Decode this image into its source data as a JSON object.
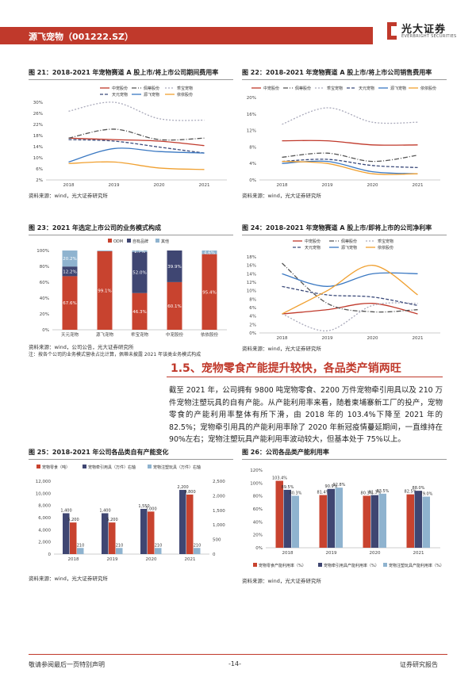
{
  "header": {
    "title": "源飞宠物（001222.SZ）",
    "logo_cn": "光大证券",
    "logo_en": "EVERBRIGHT SECURITIES"
  },
  "fig21": {
    "title": "图 21：2018-2021 年宠物赛道 A 股上市/将上市公司期间费用率",
    "source": "资料来源：wind，光大证券研究所",
    "chart_data": {
      "type": "line",
      "x": [
        "2018",
        "2019",
        "2020",
        "2021"
      ],
      "ylim": [
        0.02,
        0.28
      ],
      "yticks": [
        "2%",
        "6%",
        "10%",
        "14%",
        "18%",
        "22%",
        "26%",
        "30%"
      ],
      "series": [
        {
          "name": "中宠股份",
          "values": [
            0.16,
            0.155,
            0.15,
            0.135
          ],
          "color": "#c0392b",
          "dash": ""
        },
        {
          "name": "佩蒂股份",
          "values": [
            0.16,
            0.19,
            0.155,
            0.16
          ],
          "color": "#555",
          "dash": "6 2 1 2"
        },
        {
          "name": "乖宝宠物",
          "values": [
            0.25,
            0.28,
            0.225,
            0.22
          ],
          "color": "#aab",
          "dash": "2 2"
        },
        {
          "name": "天元宠物",
          "values": [
            0.155,
            0.15,
            0.13,
            0.11
          ],
          "color": "#3b4a7a",
          "dash": "4 2"
        },
        {
          "name": "源飞宠物",
          "values": [
            0.08,
            0.125,
            0.115,
            0.11
          ],
          "color": "#3a78c2",
          "dash": ""
        },
        {
          "name": "依依股份",
          "values": [
            0.075,
            0.08,
            0.06,
            0.055
          ],
          "color": "#f0a030",
          "dash": ""
        }
      ]
    }
  },
  "fig22": {
    "title": "图 22：2018-2021 年宠物赛道 A 股上市/将上市公司销售费用率",
    "source": "资料来源：wind，光大证券研究所",
    "chart_data": {
      "type": "line",
      "x": [
        "2018",
        "2019",
        "2020",
        "2021"
      ],
      "ylim": [
        0,
        0.2
      ],
      "yticks": [
        "0%",
        "4%",
        "8%",
        "12%",
        "16%",
        "20%"
      ],
      "series": [
        {
          "name": "中宠股份",
          "values": [
            0.095,
            0.095,
            0.085,
            0.085
          ],
          "color": "#c0392b",
          "dash": ""
        },
        {
          "name": "佩蒂股份",
          "values": [
            0.055,
            0.065,
            0.045,
            0.06
          ],
          "color": "#555",
          "dash": "6 2 1 2"
        },
        {
          "name": "乖宝宠物",
          "values": [
            0.135,
            0.175,
            0.14,
            0.14
          ],
          "color": "#aab",
          "dash": "2 2"
        },
        {
          "name": "天元宠物",
          "values": [
            0.045,
            0.05,
            0.035,
            0.03
          ],
          "color": "#3b4a7a",
          "dash": "4 2"
        },
        {
          "name": "源飞宠物",
          "values": [
            0.04,
            0.045,
            0.02,
            0.015
          ],
          "color": "#3a78c2",
          "dash": ""
        },
        {
          "name": "依依股份",
          "values": [
            0.045,
            0.04,
            0.015,
            0.015
          ],
          "color": "#f0a030",
          "dash": ""
        }
      ]
    }
  },
  "fig23": {
    "title": "图 23：2021 年选定上市公司的业务模式构成",
    "source": "资料来源：wind，公司公告，光大证券研究所",
    "note": "注：按各个公司的业务模式营收占比计算，佩蒂未披露 2021 年该类业务模式构成",
    "chart_data": {
      "type": "bar",
      "categories": [
        "天元宠物",
        "源飞宠物",
        "乖宝宠物",
        "中宠股份",
        "依依股份"
      ],
      "ylim": [
        0,
        1
      ],
      "yticks": [
        "0%",
        "20%",
        "40%",
        "60%",
        "80%",
        "100%"
      ],
      "series": [
        {
          "name": "ODM",
          "values": [
            0.676,
            0.991,
            0.463,
            0.601,
            0.954
          ],
          "labels": [
            "67.6%",
            "99.1%",
            "46.3%",
            "60.1%",
            "95.4%"
          ],
          "color": "#c8432f"
        },
        {
          "name": "自有品牌",
          "values": [
            0.122,
            0,
            0.52,
            0.399,
            0
          ],
          "labels": [
            "12.2%",
            "",
            "52.0%",
            "39.9%",
            ""
          ],
          "color": "#3f4672"
        },
        {
          "name": "其他",
          "values": [
            0.202,
            0.009,
            0.017,
            0,
            0.046
          ],
          "labels": [
            "20.2%",
            "",
            "1.7%",
            "",
            "4.6%"
          ],
          "color": "#8fb3cf"
        }
      ]
    }
  },
  "fig24": {
    "title": "图 24：2018-2021 年宠物赛道 A 股上市/即将上市的公司净利率",
    "source": "资料来源：wind，光大证券研究所",
    "chart_data": {
      "type": "line",
      "x": [
        "2018",
        "2019",
        "2020",
        "2021"
      ],
      "ylim": [
        0,
        0.18
      ],
      "yticks": [
        "0%",
        "2%",
        "4%",
        "6%",
        "8%",
        "10%",
        "12%",
        "14%",
        "16%",
        "18%"
      ],
      "series": [
        {
          "name": "中宠股份",
          "values": [
            0.045,
            0.055,
            0.07,
            0.045
          ],
          "color": "#c0392b",
          "dash": ""
        },
        {
          "name": "佩蒂股份",
          "values": [
            0.165,
            0.07,
            0.05,
            0.055
          ],
          "color": "#555",
          "dash": "6 2 1 2"
        },
        {
          "name": "乖宝宠物",
          "values": [
            0.045,
            0.005,
            0.065,
            0.07
          ],
          "color": "#aab",
          "dash": "2 2"
        },
        {
          "name": "天元宠物",
          "values": [
            0.11,
            0.09,
            0.085,
            0.065
          ],
          "color": "#3b4a7a",
          "dash": "4 2"
        },
        {
          "name": "源飞宠物",
          "values": [
            0.14,
            0.11,
            0.14,
            0.14
          ],
          "color": "#3a78c2",
          "dash": ""
        },
        {
          "name": "依依股份",
          "values": [
            0.045,
            0.1,
            0.16,
            0.09
          ],
          "color": "#f0a030",
          "dash": ""
        }
      ]
    }
  },
  "section": {
    "title": "1.5、宠物零食产能提升较快，各品类产销两旺",
    "paragraph": "截至 2021 年，公司拥有 9800 吨宠物零食、2200 万件宠物牵引用具以及 210 万件宠物注塑玩具的自有产能。从产能利用率来看，随着柬埔寨新工厂的投产，宠物零食的产能利用率整体有所下滑，由 2018 年的 103.4%下降至 2021 年的 82.5%；宠物牵引用具的产能利用率除了 2020 年新冠疫情蔓延期间，一直维持在 90%左右；宠物注塑玩具产能利用率波动较大，但基本处于 75%以上。"
  },
  "fig25": {
    "title": "图 25：2018-2021 年公司各品类自有产能变化",
    "source": "资料来源：wind，光大证券研究所",
    "chart_data": {
      "type": "bar",
      "categories": [
        "2018",
        "2019",
        "2020",
        "2021"
      ],
      "yleft": [
        0,
        12000
      ],
      "yleft_ticks": [
        "0",
        "2,000",
        "4,000",
        "6,000",
        "8,000",
        "10,000",
        "12,000"
      ],
      "yright": [
        0,
        2500
      ],
      "yright_ticks": [
        "0",
        "500",
        "1,000",
        "1,500",
        "2,000",
        "2,500"
      ],
      "series": [
        {
          "name": "宠物零食（吨）",
          "axis": "left",
          "values": [
            5200,
            5200,
            7000,
            9800
          ],
          "labels": [
            "5,200",
            "5,200",
            "7,000",
            "9,800"
          ],
          "color": "#c8432f"
        },
        {
          "name": "宠物牵引用具（万件）右轴",
          "axis": "right",
          "values": [
            1400,
            1400,
            1550,
            2200
          ],
          "labels": [
            "1,400",
            "1,400",
            "1,550",
            "2,200"
          ],
          "color": "#3f4672"
        },
        {
          "name": "宠物注塑玩具（万件）右轴",
          "axis": "right",
          "values": [
            210,
            210,
            210,
            210
          ],
          "labels": [
            "210",
            "210",
            "210",
            "210"
          ],
          "color": "#8fb3cf"
        }
      ]
    }
  },
  "fig26": {
    "title": "图 26：公司各品类产能利用率",
    "source": "资料来源：wind，光大证券研究所",
    "chart_data": {
      "type": "bar",
      "categories": [
        "2018",
        "2019",
        "2020",
        "2021"
      ],
      "ylim": [
        0,
        1.2
      ],
      "yticks": [
        "0%",
        "20%",
        "40%",
        "60%",
        "80%",
        "100%",
        "120%"
      ],
      "series": [
        {
          "name": "宠物零食产能利用率（%）",
          "values": [
            1.034,
            0.814,
            0.803,
            0.825
          ],
          "labels": [
            "103.4%",
            "81.4%",
            "80.3%",
            "82.5%"
          ],
          "color": "#c8432f"
        },
        {
          "name": "宠物牵引用具产能利用率（%）",
          "values": [
            0.895,
            0.909,
            0.813,
            0.88
          ],
          "labels": [
            "89.5%",
            "90.9%",
            "81.3%",
            "88.0%"
          ],
          "color": "#3f4672"
        },
        {
          "name": "宠物注塑玩具产能利用率（%）",
          "values": [
            0.803,
            0.928,
            0.835,
            0.79
          ],
          "labels": [
            "80.3%",
            "92.8%",
            "83.5%",
            "79.0%"
          ],
          "color": "#8fb3cf"
        }
      ]
    }
  },
  "footer": {
    "left": "敬请参阅最后一页特别声明",
    "page": "-14-",
    "right": "证券研究报告"
  }
}
